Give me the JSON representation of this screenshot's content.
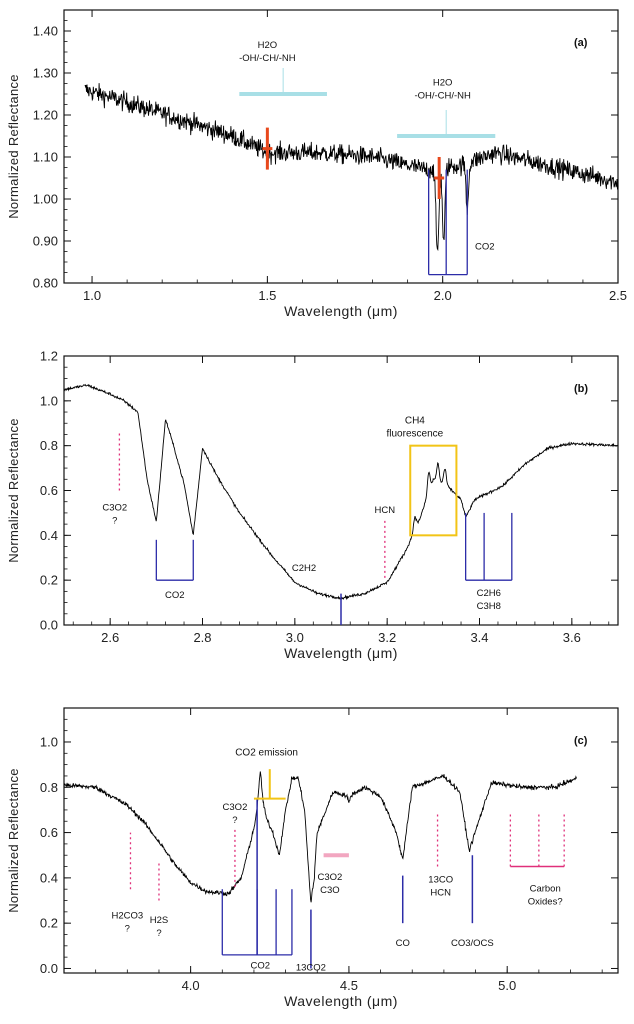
{
  "chart_data": [
    {
      "type": "line",
      "panel_label": "(a)",
      "xlabel": "Wavelength (μm)",
      "ylabel": "Normalized Reflectance",
      "xlim": [
        0.92,
        2.5
      ],
      "ylim": [
        0.8,
        1.45
      ],
      "xticks": [
        {
          "v": 1.0,
          "label": "1.0"
        },
        {
          "v": 1.5,
          "label": "1.5"
        },
        {
          "v": 2.0,
          "label": "2.0"
        },
        {
          "v": 2.5,
          "label": "2.5"
        }
      ],
      "yticks": [
        {
          "v": 0.8,
          "label": "0.80"
        },
        {
          "v": 0.9,
          "label": "0.90"
        },
        {
          "v": 1.0,
          "label": "1.00"
        },
        {
          "v": 1.1,
          "label": "1.10"
        },
        {
          "v": 1.2,
          "label": "1.20"
        },
        {
          "v": 1.3,
          "label": "1.30"
        },
        {
          "v": 1.4,
          "label": "1.40"
        }
      ],
      "spectrum": {
        "noise": 0.045,
        "points": [
          [
            0.98,
            1.26
          ],
          [
            1.1,
            1.23
          ],
          [
            1.25,
            1.19
          ],
          [
            1.4,
            1.15
          ],
          [
            1.5,
            1.11
          ],
          [
            1.65,
            1.11
          ],
          [
            1.8,
            1.1
          ],
          [
            1.95,
            1.07
          ],
          [
            2.05,
            1.08
          ],
          [
            2.15,
            1.11
          ],
          [
            2.3,
            1.08
          ],
          [
            2.5,
            1.04
          ]
        ],
        "absorptions": [
          {
            "x": 1.985,
            "depth": 0.2,
            "w": 0.006
          },
          {
            "x": 2.003,
            "depth": 0.18,
            "w": 0.005
          },
          {
            "x": 2.07,
            "depth": 0.11,
            "w": 0.005
          }
        ]
      },
      "markers": [
        {
          "kind": "bar",
          "x1": 1.42,
          "x2": 1.67,
          "y": 1.25,
          "color": "#a8dfe6",
          "label_lines": [
            "H2O",
            "-OH/-CH/-NH"
          ],
          "label_x": 1.5,
          "label_y": 1.36
        },
        {
          "kind": "bar",
          "x1": 1.87,
          "x2": 2.15,
          "y": 1.15,
          "color": "#a8dfe6",
          "label_lines": [
            "H2O",
            "-OH/-CH/-NH"
          ],
          "label_x": 2.0,
          "label_y": 1.27
        },
        {
          "kind": "err",
          "x": 1.5,
          "y": 1.12,
          "yerr": 0.05,
          "color": "#e8481c"
        },
        {
          "kind": "err",
          "x": 1.99,
          "y": 1.05,
          "yerr": 0.05,
          "color": "#e8481c"
        },
        {
          "kind": "comb",
          "xs": [
            1.96,
            2.01,
            2.07
          ],
          "top": 1.07,
          "bottom": 0.82,
          "color": "#2c2ca8",
          "label_lines": [
            "CO2"
          ],
          "label_x": 2.12,
          "label_y": 0.88
        }
      ]
    },
    {
      "type": "line",
      "panel_label": "(b)",
      "xlabel": "Wavelength (μm)",
      "ylabel": "Normalized Reflectance",
      "xlim": [
        2.5,
        3.7
      ],
      "ylim": [
        0.0,
        1.2
      ],
      "xticks": [
        {
          "v": 2.6,
          "label": "2.6"
        },
        {
          "v": 2.8,
          "label": "2.8"
        },
        {
          "v": 3.0,
          "label": "3.0"
        },
        {
          "v": 3.2,
          "label": "3.2"
        },
        {
          "v": 3.4,
          "label": "3.4"
        },
        {
          "v": 3.6,
          "label": "3.6"
        }
      ],
      "yticks": [
        {
          "v": 0.0,
          "label": "0.0"
        },
        {
          "v": 0.2,
          "label": "0.2"
        },
        {
          "v": 0.4,
          "label": "0.4"
        },
        {
          "v": 0.6,
          "label": "0.6"
        },
        {
          "v": 0.8,
          "label": "0.8"
        },
        {
          "v": 1.0,
          "label": "1.0"
        },
        {
          "v": 1.2,
          "label": "1.2"
        }
      ],
      "spectrum": {
        "noise": 0.012,
        "points": [
          [
            2.5,
            1.05
          ],
          [
            2.55,
            1.07
          ],
          [
            2.6,
            1.03
          ],
          [
            2.63,
            1.0
          ],
          [
            2.66,
            0.95
          ],
          [
            2.68,
            0.65
          ],
          [
            2.7,
            0.46
          ],
          [
            2.72,
            0.92
          ],
          [
            2.74,
            0.78
          ],
          [
            2.76,
            0.63
          ],
          [
            2.78,
            0.4
          ],
          [
            2.8,
            0.79
          ],
          [
            2.83,
            0.67
          ],
          [
            2.88,
            0.5
          ],
          [
            2.95,
            0.31
          ],
          [
            3.0,
            0.19
          ],
          [
            3.05,
            0.14
          ],
          [
            3.1,
            0.12
          ],
          [
            3.15,
            0.14
          ],
          [
            3.2,
            0.19
          ],
          [
            3.24,
            0.33
          ],
          [
            3.27,
            0.47
          ],
          [
            3.3,
            0.65
          ],
          [
            3.33,
            0.62
          ],
          [
            3.36,
            0.56
          ],
          [
            3.37,
            0.48
          ],
          [
            3.39,
            0.56
          ],
          [
            3.45,
            0.62
          ],
          [
            3.5,
            0.72
          ],
          [
            3.55,
            0.79
          ],
          [
            3.6,
            0.81
          ],
          [
            3.7,
            0.8
          ]
        ],
        "absorptions": [
          {
            "x": 3.26,
            "depth": -0.06,
            "w": 0.004
          },
          {
            "x": 3.29,
            "depth": -0.09,
            "w": 0.004
          },
          {
            "x": 3.31,
            "depth": -0.08,
            "w": 0.004
          },
          {
            "x": 3.325,
            "depth": -0.07,
            "w": 0.004
          }
        ]
      },
      "markers": [
        {
          "kind": "dot",
          "x": 2.62,
          "y1": 0.6,
          "y2": 0.86,
          "color": "#e0307a"
        },
        {
          "kind": "text",
          "lines": [
            "C3O2",
            "?"
          ],
          "x": 2.61,
          "y": 0.51
        },
        {
          "kind": "comb",
          "xs": [
            2.7,
            2.78
          ],
          "top": 0.38,
          "bottom": 0.2,
          "color": "#2c2ca8",
          "label_lines": [
            "CO2"
          ],
          "label_x": 2.74,
          "label_y": 0.12
        },
        {
          "kind": "tick",
          "x": 3.1,
          "y1": 0.14,
          "y2": 0.0,
          "color": "#2c2ca8"
        },
        {
          "kind": "text",
          "lines": [
            "C2H2"
          ],
          "x": 3.02,
          "y": 0.24
        },
        {
          "kind": "dot",
          "x": 3.195,
          "y1": 0.21,
          "y2": 0.47,
          "color": "#e0307a"
        },
        {
          "kind": "text",
          "lines": [
            "HCN"
          ],
          "x": 3.195,
          "y": 0.5
        },
        {
          "kind": "box",
          "x1": 3.25,
          "x2": 3.35,
          "y1": 0.4,
          "y2": 0.8,
          "color": "#f2c416",
          "label_lines": [
            "CH4",
            "fluorescence"
          ],
          "label_x": 3.26,
          "label_y": 0.9
        },
        {
          "kind": "comb",
          "xs": [
            3.37,
            3.41,
            3.47
          ],
          "top": 0.5,
          "bottom": 0.2,
          "color": "#2c2ca8",
          "label_lines": [
            "C2H6",
            "C3H8"
          ],
          "label_x": 3.42,
          "label_y": 0.13
        }
      ]
    },
    {
      "type": "line",
      "panel_label": "(c)",
      "xlabel": "Wavelength (μm)",
      "ylabel": "Normalized Reflectance",
      "xlim": [
        3.6,
        5.35
      ],
      "ylim": [
        -0.02,
        1.15
      ],
      "xticks": [
        {
          "v": 4.0,
          "label": "4.0"
        },
        {
          "v": 4.5,
          "label": "4.5"
        },
        {
          "v": 5.0,
          "label": "5.0"
        }
      ],
      "yticks": [
        {
          "v": 0.0,
          "label": "0.0"
        },
        {
          "v": 0.2,
          "label": "0.2"
        },
        {
          "v": 0.4,
          "label": "0.4"
        },
        {
          "v": 0.6,
          "label": "0.6"
        },
        {
          "v": 0.8,
          "label": "0.8"
        },
        {
          "v": 1.0,
          "label": "1.0"
        }
      ],
      "spectrum": {
        "noise": 0.02,
        "points": [
          [
            3.6,
            0.81
          ],
          [
            3.7,
            0.8
          ],
          [
            3.8,
            0.72
          ],
          [
            3.85,
            0.65
          ],
          [
            3.9,
            0.56
          ],
          [
            3.95,
            0.46
          ],
          [
            4.0,
            0.38
          ],
          [
            4.05,
            0.34
          ],
          [
            4.12,
            0.33
          ],
          [
            4.16,
            0.4
          ],
          [
            4.2,
            0.62
          ],
          [
            4.22,
            0.79
          ],
          [
            4.24,
            0.66
          ],
          [
            4.26,
            0.6
          ],
          [
            4.28,
            0.5
          ],
          [
            4.3,
            0.7
          ],
          [
            4.32,
            0.84
          ],
          [
            4.34,
            0.84
          ],
          [
            4.36,
            0.7
          ],
          [
            4.38,
            0.28
          ],
          [
            4.4,
            0.6
          ],
          [
            4.45,
            0.78
          ],
          [
            4.5,
            0.76
          ],
          [
            4.55,
            0.8
          ],
          [
            4.6,
            0.76
          ],
          [
            4.65,
            0.6
          ],
          [
            4.67,
            0.48
          ],
          [
            4.7,
            0.8
          ],
          [
            4.8,
            0.85
          ],
          [
            4.85,
            0.78
          ],
          [
            4.88,
            0.52
          ],
          [
            4.91,
            0.65
          ],
          [
            4.95,
            0.82
          ],
          [
            5.05,
            0.8
          ],
          [
            5.15,
            0.8
          ],
          [
            5.22,
            0.84
          ]
        ],
        "absorptions": [
          {
            "x": 4.39,
            "depth": 0.05,
            "w": 0.004
          },
          {
            "x": 4.22,
            "depth": -0.08,
            "w": 0.006
          },
          {
            "x": 4.5,
            "depth": 0.03,
            "w": 0.004
          }
        ]
      },
      "markers": [
        {
          "kind": "dot",
          "x": 3.81,
          "y1": 0.35,
          "y2": 0.6,
          "color": "#e0307a"
        },
        {
          "kind": "text",
          "lines": [
            "H2CO3",
            "?"
          ],
          "x": 3.8,
          "y": 0.22
        },
        {
          "kind": "dot",
          "x": 3.9,
          "y1": 0.3,
          "y2": 0.47,
          "color": "#e0307a"
        },
        {
          "kind": "text",
          "lines": [
            "H2S",
            "?"
          ],
          "x": 3.9,
          "y": 0.2
        },
        {
          "kind": "dot",
          "x": 4.14,
          "y1": 0.36,
          "y2": 0.62,
          "color": "#e0307a"
        },
        {
          "kind": "text",
          "lines": [
            "C3O2",
            "?"
          ],
          "x": 4.14,
          "y": 0.7
        },
        {
          "kind": "comb",
          "xs": [
            4.1,
            4.21,
            4.27,
            4.32
          ],
          "top": 0.35,
          "bottom": 0.06,
          "color": "#2c2ca8",
          "label_lines": [
            "CO2"
          ],
          "label_x": 4.22,
          "label_y": -0.0
        },
        {
          "kind": "tall",
          "x": 4.21,
          "y1": 0.06,
          "y2": 0.75,
          "color": "#2c2ca8"
        },
        {
          "kind": "emis",
          "x1": 4.2,
          "x2": 4.3,
          "y": 0.75,
          "xc": 4.25,
          "ytop": 0.88,
          "color": "#f2c416",
          "label_lines": [
            "CO2 emission"
          ],
          "label_x": 4.24,
          "label_y": 0.94
        },
        {
          "kind": "tick",
          "x": 4.38,
          "y1": 0.0,
          "y2": 0.26,
          "color": "#2c2ca8"
        },
        {
          "kind": "text",
          "lines": [
            "13CO2"
          ],
          "x": 4.38,
          "y": -0.01
        },
        {
          "kind": "hbar",
          "x1": 4.42,
          "x2": 4.5,
          "y": 0.5,
          "color": "#f2a6c0"
        },
        {
          "kind": "text",
          "lines": [
            "C3O2",
            "C3O"
          ],
          "x": 4.44,
          "y": 0.39
        },
        {
          "kind": "tick",
          "x": 4.67,
          "y1": 0.2,
          "y2": 0.41,
          "color": "#2c2ca8"
        },
        {
          "kind": "text",
          "lines": [
            "CO"
          ],
          "x": 4.67,
          "y": 0.1
        },
        {
          "kind": "dot",
          "x": 4.78,
          "y1": 0.45,
          "y2": 0.68,
          "color": "#e0307a"
        },
        {
          "kind": "text",
          "lines": [
            "13CO",
            "HCN"
          ],
          "x": 4.79,
          "y": 0.38
        },
        {
          "kind": "tick",
          "x": 4.89,
          "y1": 0.2,
          "y2": 0.5,
          "color": "#2c2ca8"
        },
        {
          "kind": "text",
          "lines": [
            "CO3/OCS"
          ],
          "x": 4.89,
          "y": 0.1
        },
        {
          "kind": "bracket",
          "x1": 5.01,
          "x2": 5.18,
          "xs": [
            5.01,
            5.1,
            5.18
          ],
          "y": 0.45,
          "ytop": 0.68,
          "color": "#e0307a"
        },
        {
          "kind": "text",
          "lines": [
            "Carbon",
            "Oxides?"
          ],
          "x": 5.12,
          "y": 0.34
        }
      ]
    }
  ],
  "ui": {
    "line_color": "#000000",
    "axis_color": "#111111"
  }
}
